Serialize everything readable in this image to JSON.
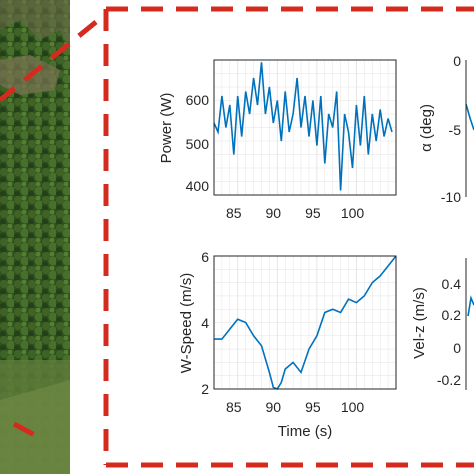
{
  "colors": {
    "line": "#0072BD",
    "frame": "#d42b1e",
    "axis": "#262626",
    "grid": "#e3e3e3"
  },
  "chart_data": [
    {
      "type": "line",
      "ylabel": "Power (W)",
      "xlabel": "",
      "xlim": [
        82,
        105
      ],
      "ylim": [
        380,
        680
      ],
      "yticks": [
        400,
        500,
        600
      ],
      "xticks": [
        85,
        90,
        95,
        100
      ],
      "grid": true,
      "x": [
        82,
        82.5,
        83,
        83.5,
        84,
        84.5,
        85,
        85.5,
        86,
        86.5,
        87,
        87.5,
        88,
        88.5,
        89,
        89.5,
        90,
        90.5,
        91,
        91.5,
        92,
        92.5,
        93,
        93.5,
        94,
        94.5,
        95,
        95.5,
        96,
        96.5,
        97,
        97.5,
        98,
        98.5,
        99,
        99.5,
        100,
        100.5,
        101,
        101.5,
        102,
        102.5,
        103,
        103.5,
        104,
        104.5
      ],
      "values": [
        540,
        520,
        600,
        530,
        580,
        470,
        600,
        510,
        610,
        560,
        640,
        580,
        675,
        560,
        620,
        540,
        590,
        500,
        610,
        520,
        560,
        640,
        530,
        600,
        510,
        590,
        490,
        600,
        450,
        560,
        530,
        610,
        390,
        560,
        520,
        440,
        580,
        490,
        600,
        470,
        560,
        500,
        570,
        510,
        550,
        520
      ]
    },
    {
      "type": "line",
      "ylabel": "α (deg)",
      "xlabel": "",
      "yticks": [
        0,
        -5,
        -10
      ],
      "x": [
        82,
        82.6,
        83.2
      ],
      "values": [
        -4.0,
        -5.6,
        -5.1
      ]
    },
    {
      "type": "line",
      "ylabel": "W-Speed (m/s)",
      "xlabel": "Time (s)",
      "xlim": [
        82,
        105
      ],
      "ylim": [
        2,
        6
      ],
      "yticks": [
        2,
        4,
        6
      ],
      "xticks": [
        85,
        90,
        95,
        100
      ],
      "grid": true,
      "x": [
        82,
        83,
        84,
        85,
        86,
        87,
        88,
        89,
        89.5,
        90,
        90.5,
        91,
        92,
        93,
        94,
        95,
        96,
        97,
        98,
        99,
        100,
        101,
        102,
        103,
        104,
        105
      ],
      "values": [
        3.5,
        3.5,
        3.8,
        4.1,
        4.0,
        3.6,
        3.3,
        2.5,
        2.05,
        2.0,
        2.2,
        2.6,
        2.8,
        2.5,
        3.2,
        3.6,
        4.3,
        4.4,
        4.3,
        4.7,
        4.6,
        4.8,
        5.2,
        5.4,
        5.7,
        6.0
      ]
    },
    {
      "type": "line",
      "ylabel": "Vel-z (m/s)",
      "xlabel": "",
      "yticks": [
        0.4,
        0.2,
        0,
        -0.2
      ],
      "x": [
        82,
        82.6,
        83.2
      ],
      "values": [
        0.1,
        0.3,
        0.22
      ]
    }
  ],
  "tick_labels": {
    "p1_x": [
      "85",
      "90",
      "95",
      "100"
    ],
    "p1_y": [
      "400",
      "500",
      "600"
    ],
    "p2_y": [
      "0",
      "-5",
      "-10"
    ],
    "p3_x": [
      "85",
      "90",
      "95",
      "100"
    ],
    "p3_y": [
      "2",
      "4",
      "6"
    ],
    "p4_y": [
      "0.4",
      "0.2",
      "0",
      "-0.2"
    ]
  }
}
